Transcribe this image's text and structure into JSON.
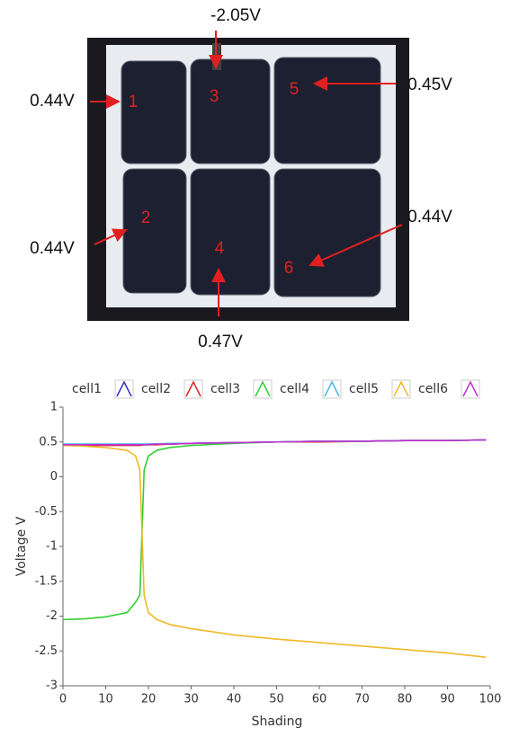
{
  "photo": {
    "voltage_labels": [
      "-2.05V",
      "0.44V",
      "0.45V",
      "0.44V",
      "0.44V",
      "0.47V"
    ],
    "cell_numbers": [
      "1",
      "2",
      "3",
      "4",
      "5",
      "6"
    ]
  },
  "chart_data": {
    "type": "line",
    "x_label": "Shading",
    "y_label": "Voltage V",
    "x": [
      0,
      5,
      10,
      15,
      17,
      18,
      19,
      20,
      22,
      25,
      30,
      40,
      50,
      60,
      70,
      80,
      90,
      99
    ],
    "series": [
      {
        "name": "cell1",
        "color": "#3030c8",
        "values": [
          0.46,
          0.46,
          0.46,
          0.46,
          0.46,
          0.46,
          0.46,
          0.47,
          0.47,
          0.47,
          0.48,
          0.49,
          0.5,
          0.51,
          0.51,
          0.52,
          0.52,
          0.53
        ]
      },
      {
        "name": "cell2",
        "color": "#e02020",
        "values": [
          0.45,
          0.45,
          0.45,
          0.45,
          0.45,
          0.45,
          0.46,
          0.46,
          0.46,
          0.47,
          0.48,
          0.49,
          0.5,
          0.5,
          0.51,
          0.52,
          0.52,
          0.53
        ]
      },
      {
        "name": "cell3",
        "color": "#30d030",
        "values": [
          -2.05,
          -2.04,
          -2.01,
          -1.95,
          -1.8,
          -1.7,
          0.1,
          0.3,
          0.38,
          0.42,
          0.45,
          0.48,
          0.5,
          0.51,
          0.51,
          0.52,
          0.52,
          0.53
        ]
      },
      {
        "name": "cell4",
        "color": "#40b8e8",
        "values": [
          0.47,
          0.47,
          0.47,
          0.47,
          0.47,
          0.47,
          0.47,
          0.47,
          0.47,
          0.48,
          0.48,
          0.49,
          0.5,
          0.51,
          0.51,
          0.52,
          0.52,
          0.53
        ]
      },
      {
        "name": "cell5",
        "color": "#f0b828",
        "values": [
          0.45,
          0.44,
          0.42,
          0.38,
          0.3,
          0.1,
          -1.7,
          -1.95,
          -2.05,
          -2.12,
          -2.18,
          -2.27,
          -2.33,
          -2.38,
          -2.43,
          -2.48,
          -2.53,
          -2.59
        ]
      },
      {
        "name": "cell6",
        "color": "#c030d0",
        "values": [
          0.46,
          0.46,
          0.46,
          0.46,
          0.46,
          0.46,
          0.46,
          0.46,
          0.47,
          0.47,
          0.48,
          0.49,
          0.5,
          0.51,
          0.51,
          0.52,
          0.52,
          0.53
        ]
      }
    ],
    "xlim": [
      0,
      100
    ],
    "xticks": [
      0,
      10,
      20,
      30,
      40,
      50,
      60,
      70,
      80,
      90,
      100
    ],
    "ylim": [
      -3,
      1
    ],
    "yticks": [
      -3,
      -2.5,
      -2,
      -1.5,
      -1,
      -0.5,
      0,
      0.5,
      1
    ],
    "grid": false,
    "legend": "top"
  }
}
